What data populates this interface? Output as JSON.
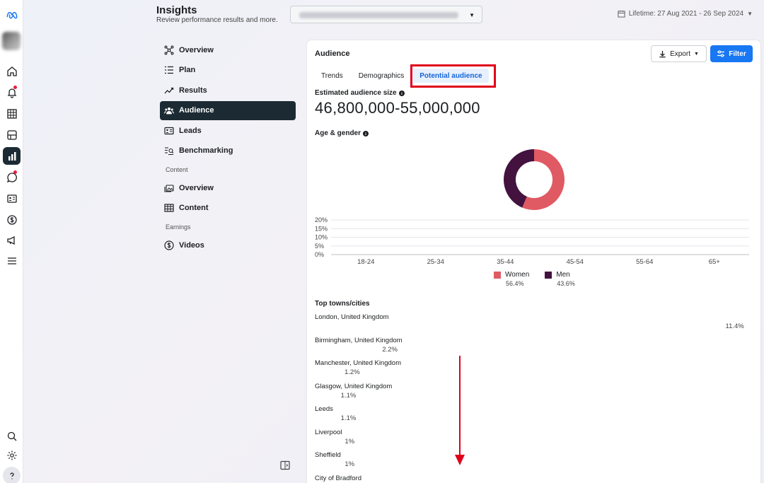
{
  "header": {
    "title": "Insights",
    "subtitle": "Review performance results and more.",
    "lifetime": "Lifetime: 27 Aug 2021 - 26 Sep 2024"
  },
  "nav": {
    "overview": "Overview",
    "plan": "Plan",
    "results": "Results",
    "audience": "Audience",
    "leads": "Leads",
    "benchmarking": "Benchmarking",
    "content_section": "Content",
    "content_overview": "Overview",
    "content": "Content",
    "earnings_section": "Earnings",
    "videos": "Videos"
  },
  "card": {
    "title": "Audience",
    "export_label": "Export",
    "filter_label": "Filter",
    "tabs": [
      "Trends",
      "Demographics",
      "Potential audience"
    ],
    "active_tab": "Potential audience",
    "estimated_label": "Estimated audience size",
    "estimated_value": "46,800,000-55,000,000",
    "age_gender_label": "Age & gender",
    "top_towns_label": "Top towns/cities"
  },
  "colors": {
    "women": "#e05a63",
    "men": "#43123f",
    "accent": "#1877f2",
    "highlight": "#e0001a"
  },
  "chart_data": [
    {
      "type": "pie",
      "labels": [
        "Women",
        "Men"
      ],
      "values": [
        56.4,
        43.6
      ],
      "value_labels": [
        "56.4%",
        "43.6%"
      ]
    },
    {
      "type": "bar",
      "categories": [
        "18-24",
        "25-34",
        "35-44",
        "45-54",
        "55-64",
        "65+"
      ],
      "series": [
        {
          "name": "Women",
          "values": [
            0,
            0,
            0,
            0,
            0,
            0
          ]
        },
        {
          "name": "Men",
          "values": [
            0,
            0,
            0,
            0,
            0,
            0
          ]
        }
      ],
      "y_ticks": [
        "20%",
        "15%",
        "10%",
        "5%",
        "0%"
      ],
      "ylim": [
        0,
        20
      ],
      "grid": true
    }
  ],
  "towns": [
    {
      "name": "London, United Kingdom",
      "pct": "11.4%",
      "value": 11.4
    },
    {
      "name": "Birmingham, United Kingdom",
      "pct": "2.2%",
      "value": 2.2
    },
    {
      "name": "Manchester, United Kingdom",
      "pct": "1.2%",
      "value": 1.2
    },
    {
      "name": "Glasgow, United Kingdom",
      "pct": "1.1%",
      "value": 1.1
    },
    {
      "name": "Leeds",
      "pct": "1.1%",
      "value": 1.1
    },
    {
      "name": "Liverpool",
      "pct": "1%",
      "value": 1.0
    },
    {
      "name": "Sheffield",
      "pct": "1%",
      "value": 1.0
    },
    {
      "name": "City of Bradford",
      "pct": "",
      "value": null
    }
  ]
}
